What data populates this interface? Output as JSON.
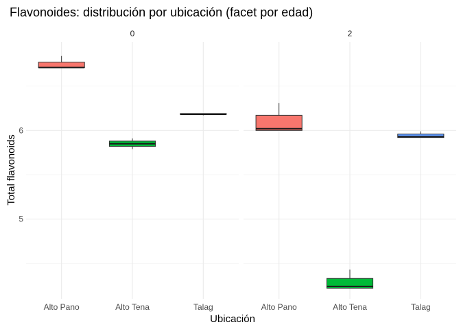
{
  "chart_data": {
    "type": "boxplot",
    "title": "Flavonoides: distribución por ubicación (facet por edad)",
    "xlabel": "Ubicación",
    "ylabel": "Total flavonoids",
    "ylim": [
      4.1,
      7.0
    ],
    "y_ticks": [
      5,
      6
    ],
    "grid": true,
    "legend": "none",
    "categories": [
      "Alto Pano",
      "Alto Tena",
      "Talag"
    ],
    "colors": {
      "Alto Pano": "#F8766D",
      "Alto Tena": "#00BA38",
      "Talag": "#619CFF"
    },
    "facets": [
      {
        "label": "0",
        "boxes": [
          {
            "category": "Alto Pano",
            "min": 6.71,
            "q1": 6.71,
            "median": 6.71,
            "q3": 6.77,
            "max": 6.84
          },
          {
            "category": "Alto Tena",
            "min": 5.79,
            "q1": 5.82,
            "median": 5.85,
            "q3": 5.88,
            "max": 5.91
          },
          {
            "category": "Talag",
            "min": 6.17,
            "q1": 6.18,
            "median": 6.18,
            "q3": 6.19,
            "max": 6.19
          }
        ]
      },
      {
        "label": "2",
        "boxes": [
          {
            "category": "Alto Pano",
            "min": 6.0,
            "q1": 6.0,
            "median": 6.02,
            "q3": 6.17,
            "max": 6.31
          },
          {
            "category": "Alto Tena",
            "min": 4.22,
            "q1": 4.22,
            "median": 4.24,
            "q3": 4.33,
            "max": 4.43
          },
          {
            "category": "Talag",
            "min": 5.92,
            "q1": 5.92,
            "median": 5.93,
            "q3": 5.96,
            "max": 5.99
          }
        ]
      }
    ]
  }
}
